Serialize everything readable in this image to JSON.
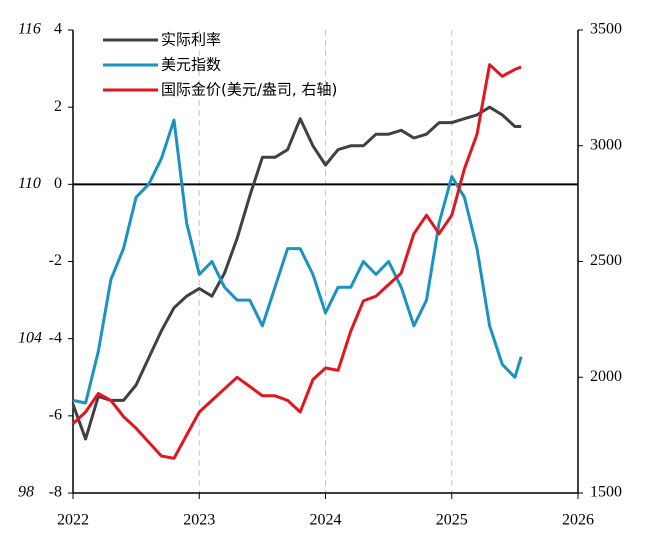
{
  "chart_data": {
    "type": "line",
    "x": [
      2022.0,
      2022.1,
      2022.2,
      2022.3,
      2022.4,
      2022.5,
      2022.6,
      2022.7,
      2022.8,
      2022.9,
      2023.0,
      2023.1,
      2023.2,
      2023.3,
      2023.4,
      2023.5,
      2023.6,
      2023.7,
      2023.8,
      2023.9,
      2024.0,
      2024.1,
      2024.2,
      2024.3,
      2024.4,
      2024.5,
      2024.6,
      2024.7,
      2024.8,
      2024.9,
      2025.0,
      2025.1,
      2025.2,
      2025.3,
      2025.4,
      2025.5,
      2025.55
    ],
    "series": [
      {
        "name": "实际利率",
        "color": "#404040",
        "axis": "y",
        "values": [
          -5.7,
          -6.6,
          -5.5,
          -5.6,
          -5.6,
          -5.2,
          -4.5,
          -3.8,
          -3.2,
          -2.9,
          -2.7,
          -2.9,
          -2.3,
          -1.4,
          -0.3,
          0.7,
          0.7,
          0.9,
          1.7,
          1.0,
          0.5,
          0.9,
          1.0,
          1.0,
          1.3,
          1.3,
          1.4,
          1.2,
          1.3,
          1.6,
          1.6,
          1.7,
          1.8,
          2.0,
          1.8,
          1.5,
          1.5
        ]
      },
      {
        "name": "美元指数",
        "color": "#1a93c0",
        "axis": "y3",
        "values": [
          101.6,
          101.5,
          103.5,
          106.3,
          107.5,
          109.5,
          110,
          111,
          112.5,
          108.5,
          106.5,
          107,
          106,
          105.5,
          105.5,
          104.5,
          106,
          107.5,
          107.5,
          106.5,
          105,
          106,
          106,
          107,
          106.5,
          107,
          106,
          104.5,
          105.5,
          108.5,
          110.3,
          109.5,
          107.5,
          104.5,
          103,
          102.5,
          103.3
        ]
      },
      {
        "name": "国际金价(美元/盎司, 右轴)",
        "color": "#e3151f",
        "axis": "y2",
        "values": [
          1800,
          1850,
          1930,
          1900,
          1830,
          1780,
          1720,
          1660,
          1650,
          1750,
          1850,
          1900,
          1950,
          2000,
          1960,
          1920,
          1920,
          1900,
          1850,
          1990,
          2040,
          2030,
          2200,
          2330,
          2350,
          2400,
          2450,
          2620,
          2700,
          2620,
          2700,
          2900,
          3050,
          3350,
          3300,
          3330,
          3340
        ]
      }
    ],
    "xlim": [
      2022,
      2026
    ],
    "xticks": [
      2022,
      2023,
      2024,
      2025,
      2026
    ],
    "xgrid": true,
    "ylim": [
      -8,
      4
    ],
    "yticks": [
      -8,
      -6,
      -4,
      -2,
      0,
      2,
      4
    ],
    "zero_line": true,
    "y3lim": [
      98,
      116
    ],
    "y3ticks": [
      98,
      104,
      110,
      116
    ],
    "y3color": "#1a93c0",
    "y2lim": [
      1500,
      3500
    ],
    "y2ticks": [
      1500,
      2000,
      2500,
      3000,
      3500
    ],
    "legend": "upper left"
  }
}
